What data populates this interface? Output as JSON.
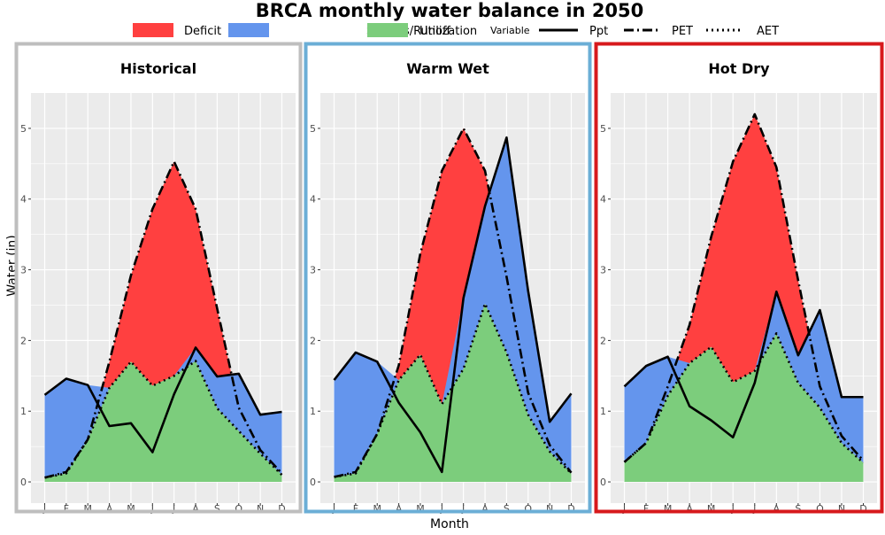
{
  "chart_data": {
    "type": "area",
    "title": "BRCA monthly water balance in 2050",
    "xlabel": "Month",
    "ylabel": "Water (in)",
    "ylim": [
      -0.3,
      5.5
    ],
    "yticks": [
      0,
      1,
      2,
      3,
      4,
      5
    ],
    "categories": [
      "J",
      "F",
      "M",
      "A",
      "M",
      "J",
      "J",
      "A",
      "S",
      "O",
      "N",
      "D"
    ],
    "grid": true,
    "legend": {
      "position": "top",
      "fill_entries": [
        {
          "label": "Deficit",
          "color": "#ff4040"
        },
        {
          "label": "Surplus/Runoff",
          "color": "#6495ed"
        },
        {
          "label": "Utilization",
          "color": "#7ccd7c"
        }
      ],
      "line_title": "Variable",
      "line_entries": [
        {
          "label": "Ppt",
          "style": "solid"
        },
        {
          "label": "PET",
          "style": "dashdot"
        },
        {
          "label": "AET",
          "style": "dotted"
        }
      ]
    },
    "panels": [
      {
        "title": "Historical",
        "border_color": "#bebebe",
        "series": [
          {
            "name": "Ppt",
            "values": [
              1.23,
              1.46,
              1.37,
              0.79,
              0.83,
              0.42,
              1.24,
              1.9,
              1.49,
              1.53,
              0.95,
              0.99
            ]
          },
          {
            "name": "PET",
            "values": [
              0.06,
              0.14,
              0.6,
              1.7,
              2.92,
              3.86,
              4.53,
              3.86,
              2.45,
              1.05,
              0.45,
              0.12
            ]
          },
          {
            "name": "AET",
            "values": [
              0.06,
              0.12,
              0.6,
              1.33,
              1.7,
              1.36,
              1.5,
              1.71,
              1.04,
              0.72,
              0.4,
              0.1
            ]
          }
        ]
      },
      {
        "title": "Warm Wet",
        "border_color": "#6baed6",
        "series": [
          {
            "name": "Ppt",
            "values": [
              1.44,
              1.83,
              1.7,
              1.12,
              0.7,
              0.14,
              2.6,
              3.9,
              4.87,
              2.7,
              0.85,
              1.25
            ]
          },
          {
            "name": "PET",
            "values": [
              0.07,
              0.14,
              0.68,
              1.65,
              3.23,
              4.4,
              5.0,
              4.4,
              2.9,
              1.26,
              0.52,
              0.13
            ]
          },
          {
            "name": "AET",
            "values": [
              0.07,
              0.12,
              0.68,
              1.44,
              1.8,
              1.1,
              1.6,
              2.52,
              1.83,
              0.95,
              0.43,
              0.12
            ]
          }
        ]
      },
      {
        "title": "Hot Dry",
        "border_color": "#d7191c",
        "series": [
          {
            "name": "Ppt",
            "values": [
              1.35,
              1.64,
              1.77,
              1.07,
              0.87,
              0.63,
              1.4,
              2.69,
              1.79,
              2.43,
              1.2,
              1.2
            ]
          },
          {
            "name": "PET",
            "values": [
              0.28,
              0.55,
              1.35,
              2.22,
              3.47,
              4.53,
              5.2,
              4.45,
              2.85,
              1.35,
              0.65,
              0.3
            ]
          },
          {
            "name": "AET",
            "values": [
              0.28,
              0.55,
              1.22,
              1.68,
              1.91,
              1.41,
              1.57,
              2.1,
              1.4,
              1.05,
              0.55,
              0.27
            ]
          }
        ]
      }
    ]
  }
}
